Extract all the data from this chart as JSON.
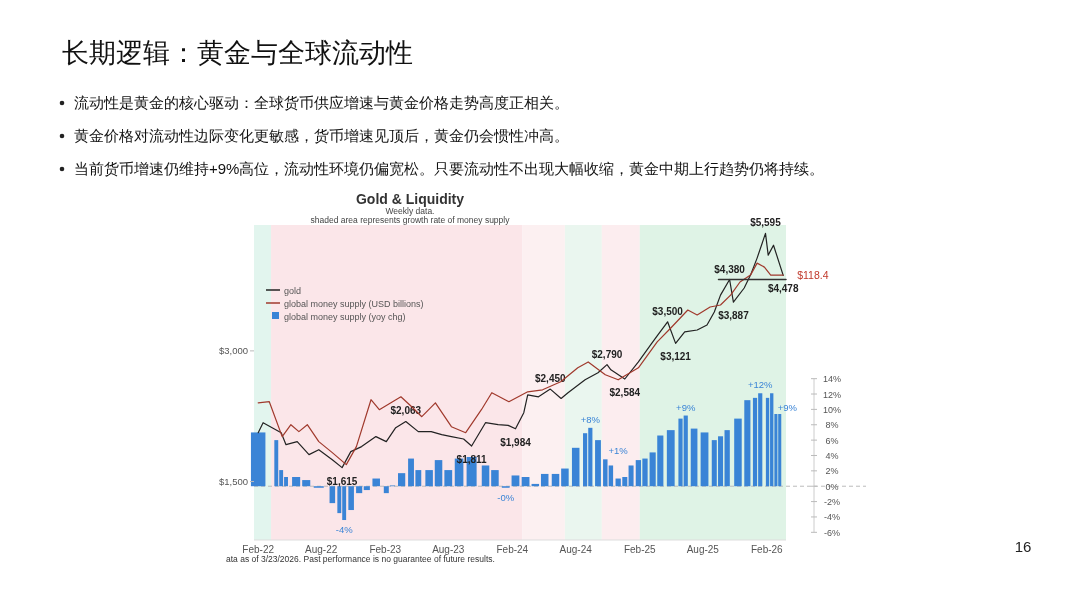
{
  "chart_data": {
    "type": "line",
    "title": "Gold & Liquidity",
    "subtitle": "Weekly data.",
    "annotations": [
      "长期逻辑：黄金与全球流动性",
      "流动性是黄金的核心驱动：全球货币供应增速与黄金价格走势高度正相关。",
      "黄金价格对流动性边际变化更敏感，货币增速见顶后，黄金仍会惯性冲高。",
      "当前货币增速仍维持+9%高位，流动性环境仍偏宽松。只要流动性不出现大幅收缩，黄金中期上行趋势仍将持续。",
      "shaded area represents growth rate of money supply",
      "ata as of 3/23/2026. Past performance is no guarantee of future results.",
      "16",
      {
        "text": "$118.4",
        "x": "2026-03-20",
        "y": 4485
      }
    ],
    "xlim": [
      "2022-01-20",
      "2026-03-28"
    ],
    "xticks": [
      {
        "value": "2022-02-01",
        "label": "Feb-22"
      },
      {
        "value": "2022-08-01",
        "label": "Aug-22"
      },
      {
        "value": "2023-02-01",
        "label": "Feb-23"
      },
      {
        "value": "2023-08-01",
        "label": "Aug-23"
      },
      {
        "value": "2024-02-01",
        "label": "Feb-24"
      },
      {
        "value": "2024-08-01",
        "label": "Aug-24"
      },
      {
        "value": "2025-02-01",
        "label": "Feb-25"
      },
      {
        "value": "2025-08-01",
        "label": "Aug-25"
      },
      {
        "value": "2026-02-01",
        "label": "Feb-26"
      }
    ],
    "log": "y",
    "ylim": [
      1100,
      5850
    ],
    "yticks": [
      {
        "value": 1500,
        "label": "$1,500"
      },
      {
        "value": 3000,
        "label": "$3,000"
      }
    ],
    "y2lim": [
      -7,
      34
    ],
    "y2ticks": [
      {
        "value": -6,
        "label": "-6%"
      },
      {
        "value": -4,
        "label": "-4%"
      },
      {
        "value": -2,
        "label": "-2%"
      },
      {
        "value": 0,
        "label": "0%"
      },
      {
        "value": 2,
        "label": "2%"
      },
      {
        "value": 4,
        "label": "4%"
      },
      {
        "value": 6,
        "label": "6%"
      },
      {
        "value": 8,
        "label": "8%"
      },
      {
        "value": 10,
        "label": "10%"
      },
      {
        "value": 12,
        "label": "12%"
      },
      {
        "value": 14,
        "label": "14%"
      }
    ],
    "legend": "top left",
    "grid": false,
    "ref_lines": [
      {
        "axis": "y2",
        "value": 0,
        "color": "#bbbbbb",
        "line_style": "dashed"
      }
    ],
    "bands": [
      {
        "axis": "x",
        "from": "2022-01-20",
        "to": "2022-03-10",
        "color": "#e2f5ee"
      },
      {
        "axis": "x",
        "from": "2022-03-10",
        "to": "2024-03-01",
        "color": "#fbe6e9"
      },
      {
        "axis": "x",
        "from": "2024-03-01",
        "to": "2024-07-01",
        "color": "#fcf0f1"
      },
      {
        "axis": "x",
        "from": "2024-07-01",
        "to": "2024-10-15",
        "color": "#eaf6ef"
      },
      {
        "axis": "x",
        "from": "2024-10-15",
        "to": "2025-02-01",
        "color": "#fcedef"
      },
      {
        "axis": "x",
        "from": "2025-02-01",
        "to": "2026-03-28",
        "color": "#dff3e6"
      }
    ],
    "series": [
      {
        "name": "gold",
        "color": "#222222",
        "x": [
          "2022-02-01",
          "2022-02-15",
          "2022-04-08",
          "2022-04-22",
          "2022-05-24",
          "2022-06-27",
          "2022-07-25",
          "2022-09-02",
          "2022-09-30",
          "2022-10-25",
          "2022-11-25",
          "2023-01-05",
          "2023-02-04",
          "2023-03-03",
          "2023-04-01",
          "2023-05-07",
          "2023-06-13",
          "2023-07-13",
          "2023-08-10",
          "2023-09-14",
          "2023-10-07",
          "2023-11-16",
          "2023-12-22",
          "2024-01-20",
          "2024-02-10",
          "2024-03-05",
          "2024-03-16",
          "2024-04-16",
          "2024-05-20",
          "2024-06-20",
          "2024-07-10",
          "2024-08-28",
          "2024-10-04",
          "2024-10-30",
          "2024-11-10",
          "2024-12-20",
          "2025-01-28",
          "2025-03-04",
          "2025-03-25",
          "2025-04-22",
          "2025-05-15",
          "2025-06-10",
          "2025-07-16",
          "2025-08-13",
          "2025-09-03",
          "2025-09-21",
          "2025-10-17",
          "2025-10-28",
          "2025-11-28",
          "2025-12-16",
          "2026-01-04",
          "2026-01-28",
          "2026-02-05",
          "2026-02-20",
          "2026-03-20"
        ],
        "values": [
          1944,
          2049,
          1944,
          1824,
          1854,
          1730,
          1776,
          1684,
          1615,
          1758,
          1805,
          1904,
          1854,
          1996,
          2063,
          1955,
          1955,
          1923,
          1904,
          1880,
          1811,
          2049,
          2028,
          2020,
          1984,
          2161,
          2377,
          2352,
          2450,
          2330,
          2403,
          2574,
          2670,
          2790,
          2713,
          2584,
          2830,
          3097,
          3265,
          3500,
          3121,
          3317,
          3352,
          3442,
          3688,
          4033,
          4380,
          3887,
          4187,
          4485,
          4908,
          5595,
          4986,
          5256,
          4478
        ],
        "value_labels": [
          null,
          null,
          null,
          null,
          null,
          null,
          null,
          null,
          "$1,615",
          null,
          null,
          null,
          null,
          null,
          "$2,063",
          null,
          null,
          null,
          null,
          null,
          "$1,811",
          null,
          null,
          null,
          "$1,984",
          null,
          null,
          null,
          "$2,450",
          null,
          null,
          null,
          null,
          "$2,790",
          null,
          "$2,584",
          null,
          null,
          null,
          "$3,500",
          "$3,121",
          null,
          null,
          null,
          null,
          null,
          "$4,380",
          "$3,887",
          null,
          null,
          null,
          "$5,595",
          null,
          null,
          "$4,478"
        ]
      },
      {
        "name": "global money supply (USD billions)",
        "color": "#a0392c",
        "x": [
          "2022-02-01",
          "2022-03-05",
          "2022-04-11",
          "2022-05-06",
          "2022-05-29",
          "2022-06-22",
          "2022-07-25",
          "2022-09-02",
          "2022-10-12",
          "2022-11-10",
          "2022-12-22",
          "2023-01-15",
          "2023-03-18",
          "2023-04-18",
          "2023-05-17",
          "2023-06-25",
          "2023-08-10",
          "2023-09-20",
          "2023-11-04",
          "2023-12-04",
          "2024-01-22",
          "2024-03-16",
          "2024-04-28",
          "2024-06-19",
          "2024-08-07",
          "2024-09-06",
          "2024-10-25",
          "2024-12-01",
          "2025-01-28",
          "2025-03-23",
          "2025-05-01",
          "2025-06-19",
          "2025-07-16",
          "2025-08-22",
          "2025-09-21",
          "2025-10-20",
          "2025-11-16",
          "2025-12-16",
          "2026-01-04",
          "2026-01-25",
          "2026-02-12",
          "2026-03-20"
        ],
        "values": [
          2278,
          2291,
          1904,
          2028,
          1955,
          2028,
          1854,
          1749,
          1641,
          1805,
          2315,
          2196,
          2352,
          2231,
          2116,
          2278,
          2007,
          1944,
          2196,
          2403,
          2291,
          2415,
          2440,
          2546,
          2742,
          2830,
          2643,
          2574,
          2742,
          3147,
          3388,
          3727,
          3630,
          3786,
          3827,
          4033,
          4323,
          4485,
          4779,
          4679,
          4485,
          4485
        ]
      },
      {
        "color": "#333333",
        "x": [
          "2025-09-15",
          "2026-03-28"
        ],
        "values": [
          4380,
          4380
        ]
      },
      {
        "name": "global money supply (yoy chg)",
        "type": "bar",
        "axis": "y2",
        "color": "#3a84d6",
        "x": [
          "2022-02-01",
          "2022-03-25",
          "2022-04-08",
          "2022-04-22",
          "2022-05-21",
          "2022-06-19",
          "2022-07-25",
          "2022-09-02",
          "2022-09-22",
          "2022-10-06",
          "2022-10-26",
          "2022-11-18",
          "2022-12-10",
          "2023-01-06",
          "2023-02-04",
          "2023-02-22",
          "2023-03-20",
          "2023-04-16",
          "2023-05-07",
          "2023-06-07",
          "2023-07-04",
          "2023-08-01",
          "2023-09-01",
          "2023-10-07",
          "2023-11-16",
          "2023-12-13",
          "2024-01-13",
          "2024-02-10",
          "2024-03-10",
          "2024-04-07",
          "2024-05-04",
          "2024-06-04",
          "2024-07-01",
          "2024-08-01",
          "2024-08-28",
          "2024-09-12",
          "2024-10-04",
          "2024-10-25",
          "2024-11-10",
          "2024-12-01",
          "2024-12-20",
          "2025-01-07",
          "2025-01-28",
          "2025-02-16",
          "2025-03-10",
          "2025-04-01",
          "2025-05-01",
          "2025-05-29",
          "2025-06-13",
          "2025-07-07",
          "2025-08-06",
          "2025-09-03",
          "2025-09-21",
          "2025-10-10",
          "2025-11-10",
          "2025-12-07",
          "2025-12-29",
          "2026-01-13",
          "2026-02-03",
          "2026-02-15",
          "2026-02-27",
          "2026-03-10"
        ],
        "values": [
          7.0,
          6.0,
          2.1,
          1.2,
          1.2,
          0.8,
          -0.2,
          -2.2,
          -3.5,
          -4.4,
          -3.1,
          -0.9,
          -0.5,
          1.0,
          -0.9,
          0.1,
          1.7,
          3.6,
          2.1,
          2.1,
          3.4,
          2.1,
          3.6,
          3.8,
          2.7,
          2.1,
          -0.2,
          1.4,
          1.2,
          0.3,
          1.6,
          1.6,
          2.3,
          5.0,
          6.9,
          7.6,
          6.0,
          3.5,
          2.7,
          1.0,
          1.2,
          2.7,
          3.4,
          3.6,
          4.4,
          6.6,
          7.3,
          8.8,
          9.2,
          7.5,
          7.0,
          6.0,
          6.5,
          7.3,
          8.8,
          11.2,
          11.5,
          12.1,
          11.5,
          12.1,
          9.4,
          9.4
        ],
        "value_labels": [
          null,
          null,
          null,
          null,
          null,
          null,
          null,
          null,
          null,
          "-4%",
          null,
          null,
          null,
          null,
          null,
          null,
          null,
          null,
          null,
          null,
          null,
          null,
          null,
          null,
          null,
          null,
          "-0%",
          null,
          null,
          null,
          null,
          null,
          null,
          null,
          null,
          "+8%",
          null,
          null,
          null,
          "+1%",
          null,
          null,
          null,
          null,
          null,
          null,
          null,
          null,
          "+9%",
          null,
          null,
          null,
          null,
          null,
          null,
          null,
          null,
          "+12%",
          null,
          null,
          null,
          "+9%"
        ]
      }
    ]
  }
}
